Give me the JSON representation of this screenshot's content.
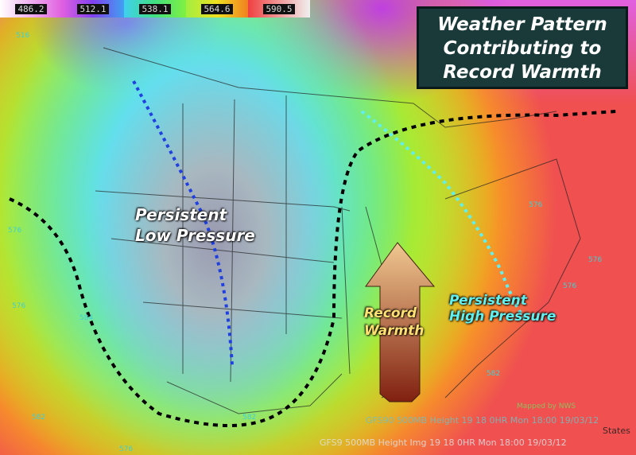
{
  "legend": {
    "values": [
      "486.2",
      "512.1",
      "538.1",
      "564.6",
      "590.5"
    ],
    "colors": [
      "#e060e0",
      "#c040f0",
      "#40d0f0",
      "#f0e020",
      "#f04040"
    ]
  },
  "title": {
    "lines": [
      "Weather Pattern",
      "Contributing to",
      "Record Warmth"
    ]
  },
  "labels": {
    "low": [
      "Persistent",
      "Low Pressure"
    ],
    "warmth": [
      "Record",
      "Warmth"
    ],
    "high": [
      "Persistent",
      "High Pressure"
    ]
  },
  "contours": [
    "516",
    "576",
    "576",
    "582",
    "576",
    "582",
    "576",
    "584",
    "576",
    "576",
    "582"
  ],
  "footer": {
    "line1": "GFS90 500MB Height 19 18  0HR Mon 18:00 19/03/12",
    "line2": "GFS9 500MB Height Img 19 18  0HR Mon 18:00 19/03/12",
    "states": "States",
    "credit": "Mapped by NWS"
  },
  "colors": {
    "ridge_line": "#000000",
    "trough_line": "#2040e0",
    "high_axis": "#60f0f0",
    "arrow": "#c08060"
  }
}
